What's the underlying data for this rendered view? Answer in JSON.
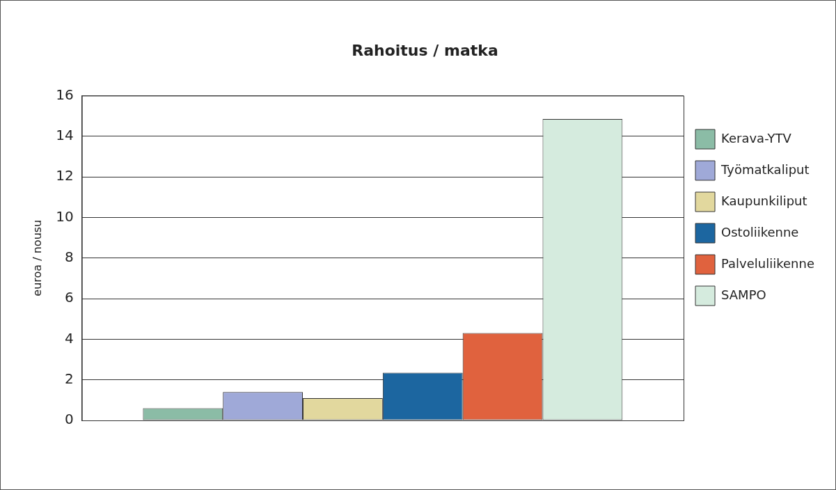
{
  "chart_data": {
    "type": "bar",
    "title": "Rahoitus / matka",
    "ylabel": "euroa / nousu",
    "categories": [
      null
    ],
    "series": [
      {
        "name": "Kerava-YTV",
        "color": "#8bbca6",
        "values": [
          0.6
        ]
      },
      {
        "name": "Työmatkaliput",
        "color": "#9fa9d8",
        "values": [
          1.4
        ]
      },
      {
        "name": "Kaupunkiliput",
        "color": "#e2d89e",
        "values": [
          1.1
        ]
      },
      {
        "name": "Ostoliikenne",
        "color": "#1c66a0",
        "values": [
          2.35
        ]
      },
      {
        "name": "Palveluliikenne",
        "color": "#e0623e",
        "values": [
          4.3
        ]
      },
      {
        "name": "SAMPO",
        "color": "#d5ebde",
        "values": [
          14.85
        ]
      }
    ],
    "ylim": [
      0,
      16
    ],
    "yticks": [
      0,
      2,
      4,
      6,
      8,
      10,
      12,
      14,
      16
    ],
    "grid": "y",
    "legend": "right",
    "tick_labels": "y"
  }
}
